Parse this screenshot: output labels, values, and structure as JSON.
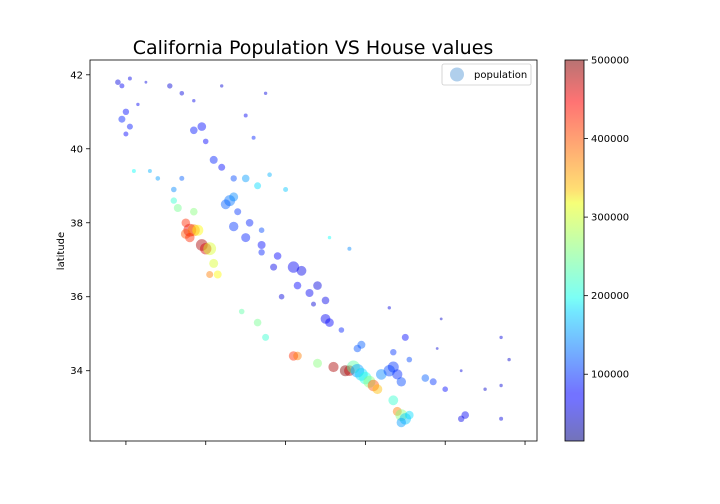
{
  "chart_data": {
    "type": "scatter",
    "title": "California Population VS House values",
    "xlabel": "",
    "ylabel": "latitude",
    "xlim": [
      -124.9,
      -113.7
    ],
    "ylim": [
      32.1,
      42.4
    ],
    "x_ticks": [
      -124,
      -122,
      -120,
      -118,
      -116,
      -114
    ],
    "x_tick_labels_visible": false,
    "y_ticks": [
      34,
      36,
      38,
      40,
      42
    ],
    "y_tick_labels": [
      "34",
      "36",
      "38",
      "40",
      "42"
    ],
    "grid": false,
    "legend": {
      "position": "top-right",
      "entries": [
        "population"
      ]
    },
    "colorbar": {
      "colormap": "jet",
      "min": 15000,
      "max": 500000,
      "ticks": [
        100000,
        200000,
        300000,
        400000,
        500000
      ],
      "tick_labels": [
        "100000",
        "200000",
        "300000",
        "400000",
        "500000"
      ]
    },
    "series": [
      {
        "name": "population",
        "color_value": "median_house_value",
        "size_value": "population",
        "points": [
          [
            -124.2,
            41.8,
            60000,
            40
          ],
          [
            -124.1,
            41.7,
            70000,
            30
          ],
          [
            -123.9,
            41.9,
            65000,
            20
          ],
          [
            -124.0,
            41.0,
            80000,
            50
          ],
          [
            -124.1,
            40.8,
            90000,
            60
          ],
          [
            -123.9,
            40.6,
            85000,
            45
          ],
          [
            -124.0,
            40.4,
            75000,
            30
          ],
          [
            -123.7,
            41.2,
            70000,
            15
          ],
          [
            -123.5,
            41.8,
            60000,
            10
          ],
          [
            -122.9,
            41.7,
            55000,
            35
          ],
          [
            -122.6,
            41.5,
            60000,
            25
          ],
          [
            -122.3,
            41.3,
            65000,
            15
          ],
          [
            -122.1,
            40.6,
            80000,
            90
          ],
          [
            -122.3,
            40.5,
            85000,
            70
          ],
          [
            -122.0,
            40.2,
            75000,
            40
          ],
          [
            -121.8,
            39.7,
            90000,
            80
          ],
          [
            -121.6,
            39.5,
            80000,
            60
          ],
          [
            -121.3,
            39.2,
            110000,
            50
          ],
          [
            -121.0,
            39.2,
            150000,
            70
          ],
          [
            -120.7,
            39.0,
            180000,
            60
          ],
          [
            -121.4,
            38.6,
            130000,
            150
          ],
          [
            -121.5,
            38.5,
            120000,
            120
          ],
          [
            -121.3,
            38.7,
            140000,
            100
          ],
          [
            -121.2,
            38.3,
            100000,
            60
          ],
          [
            -120.9,
            38.0,
            90000,
            70
          ],
          [
            -120.6,
            37.8,
            110000,
            40
          ],
          [
            -121.3,
            37.9,
            100000,
            110
          ],
          [
            -121.0,
            37.6,
            90000,
            100
          ],
          [
            -120.6,
            37.4,
            80000,
            80
          ],
          [
            -120.2,
            37.1,
            75000,
            70
          ],
          [
            -119.8,
            36.8,
            70000,
            160
          ],
          [
            -119.6,
            36.7,
            65000,
            120
          ],
          [
            -119.2,
            36.3,
            60000,
            90
          ],
          [
            -119.0,
            35.9,
            65000,
            70
          ],
          [
            -119.0,
            35.4,
            70000,
            120
          ],
          [
            -118.9,
            35.3,
            75000,
            90
          ],
          [
            -122.4,
            37.8,
            450000,
            200
          ],
          [
            -122.3,
            37.8,
            380000,
            180
          ],
          [
            -122.2,
            37.8,
            320000,
            150
          ],
          [
            -122.1,
            37.4,
            480000,
            170
          ],
          [
            -122.0,
            37.3,
            460000,
            160
          ],
          [
            -121.9,
            37.3,
            300000,
            200
          ],
          [
            -122.5,
            37.7,
            400000,
            120
          ],
          [
            -122.4,
            37.6,
            420000,
            110
          ],
          [
            -122.5,
            38.0,
            420000,
            90
          ],
          [
            -122.7,
            38.4,
            250000,
            80
          ],
          [
            -122.8,
            38.6,
            220000,
            50
          ],
          [
            -122.3,
            38.3,
            260000,
            70
          ],
          [
            -121.8,
            36.9,
            300000,
            100
          ],
          [
            -121.7,
            36.6,
            320000,
            80
          ],
          [
            -121.9,
            36.6,
            380000,
            60
          ],
          [
            -121.1,
            35.6,
            240000,
            40
          ],
          [
            -120.7,
            35.3,
            250000,
            70
          ],
          [
            -120.5,
            34.9,
            220000,
            60
          ],
          [
            -119.8,
            34.4,
            420000,
            110
          ],
          [
            -119.7,
            34.4,
            380000,
            90
          ],
          [
            -119.2,
            34.2,
            260000,
            100
          ],
          [
            -118.8,
            34.1,
            480000,
            130
          ],
          [
            -118.5,
            34.0,
            500000,
            150
          ],
          [
            -118.4,
            34.0,
            470000,
            140
          ],
          [
            -118.3,
            34.1,
            240000,
            210
          ],
          [
            -118.2,
            34.0,
            150000,
            220
          ],
          [
            -118.1,
            33.9,
            180000,
            200
          ],
          [
            -118.0,
            33.8,
            210000,
            190
          ],
          [
            -117.9,
            33.7,
            260000,
            180
          ],
          [
            -117.8,
            33.6,
            400000,
            160
          ],
          [
            -117.7,
            33.5,
            350000,
            120
          ],
          [
            -117.6,
            33.9,
            140000,
            140
          ],
          [
            -117.4,
            34.0,
            110000,
            160
          ],
          [
            -117.3,
            34.1,
            100000,
            150
          ],
          [
            -117.2,
            33.9,
            95000,
            130
          ],
          [
            -117.1,
            33.7,
            110000,
            110
          ],
          [
            -117.3,
            33.2,
            220000,
            120
          ],
          [
            -117.2,
            32.9,
            380000,
            100
          ],
          [
            -117.1,
            32.8,
            260000,
            170
          ],
          [
            -117.0,
            32.7,
            170000,
            160
          ],
          [
            -117.1,
            32.6,
            150000,
            110
          ],
          [
            -116.9,
            32.8,
            180000,
            90
          ],
          [
            -116.5,
            33.8,
            120000,
            70
          ],
          [
            -116.3,
            33.7,
            100000,
            60
          ],
          [
            -116.0,
            33.5,
            80000,
            40
          ],
          [
            -115.5,
            32.8,
            70000,
            70
          ],
          [
            -115.6,
            32.7,
            65000,
            50
          ],
          [
            -114.6,
            32.7,
            60000,
            20
          ],
          [
            -114.6,
            33.6,
            55000,
            15
          ],
          [
            -114.4,
            34.3,
            50000,
            15
          ],
          [
            -114.6,
            34.9,
            60000,
            15
          ],
          [
            -117.0,
            34.9,
            80000,
            60
          ],
          [
            -117.3,
            34.5,
            100000,
            50
          ],
          [
            -116.9,
            34.3,
            110000,
            40
          ],
          [
            -118.1,
            34.7,
            120000,
            80
          ],
          [
            -118.2,
            34.6,
            115000,
            70
          ],
          [
            -118.6,
            35.1,
            90000,
            40
          ],
          [
            -120.0,
            38.9,
            170000,
            30
          ],
          [
            -120.4,
            39.3,
            160000,
            25
          ],
          [
            -120.8,
            40.3,
            90000,
            20
          ],
          [
            -121.0,
            40.9,
            70000,
            20
          ],
          [
            -120.5,
            41.5,
            60000,
            15
          ],
          [
            -121.6,
            41.7,
            55000,
            15
          ],
          [
            -122.6,
            39.2,
            120000,
            30
          ],
          [
            -122.8,
            38.9,
            140000,
            40
          ],
          [
            -123.2,
            39.2,
            150000,
            25
          ],
          [
            -123.4,
            39.4,
            160000,
            20
          ],
          [
            -123.8,
            39.4,
            200000,
            20
          ],
          [
            -118.4,
            37.3,
            140000,
            20
          ],
          [
            -118.9,
            37.6,
            200000,
            15
          ],
          [
            -117.4,
            35.7,
            60000,
            15
          ],
          [
            -116.1,
            35.4,
            50000,
            10
          ],
          [
            -115.6,
            34.0,
            60000,
            10
          ],
          [
            -116.2,
            34.6,
            55000,
            10
          ],
          [
            -115.0,
            33.5,
            50000,
            15
          ],
          [
            -119.4,
            36.1,
            70000,
            80
          ],
          [
            -119.7,
            36.3,
            75000,
            70
          ],
          [
            -120.3,
            36.8,
            65000,
            60
          ],
          [
            -120.1,
            36.0,
            60000,
            40
          ],
          [
            -119.3,
            35.8,
            55000,
            30
          ],
          [
            -120.6,
            37.2,
            90000,
            50
          ]
        ]
      }
    ]
  }
}
